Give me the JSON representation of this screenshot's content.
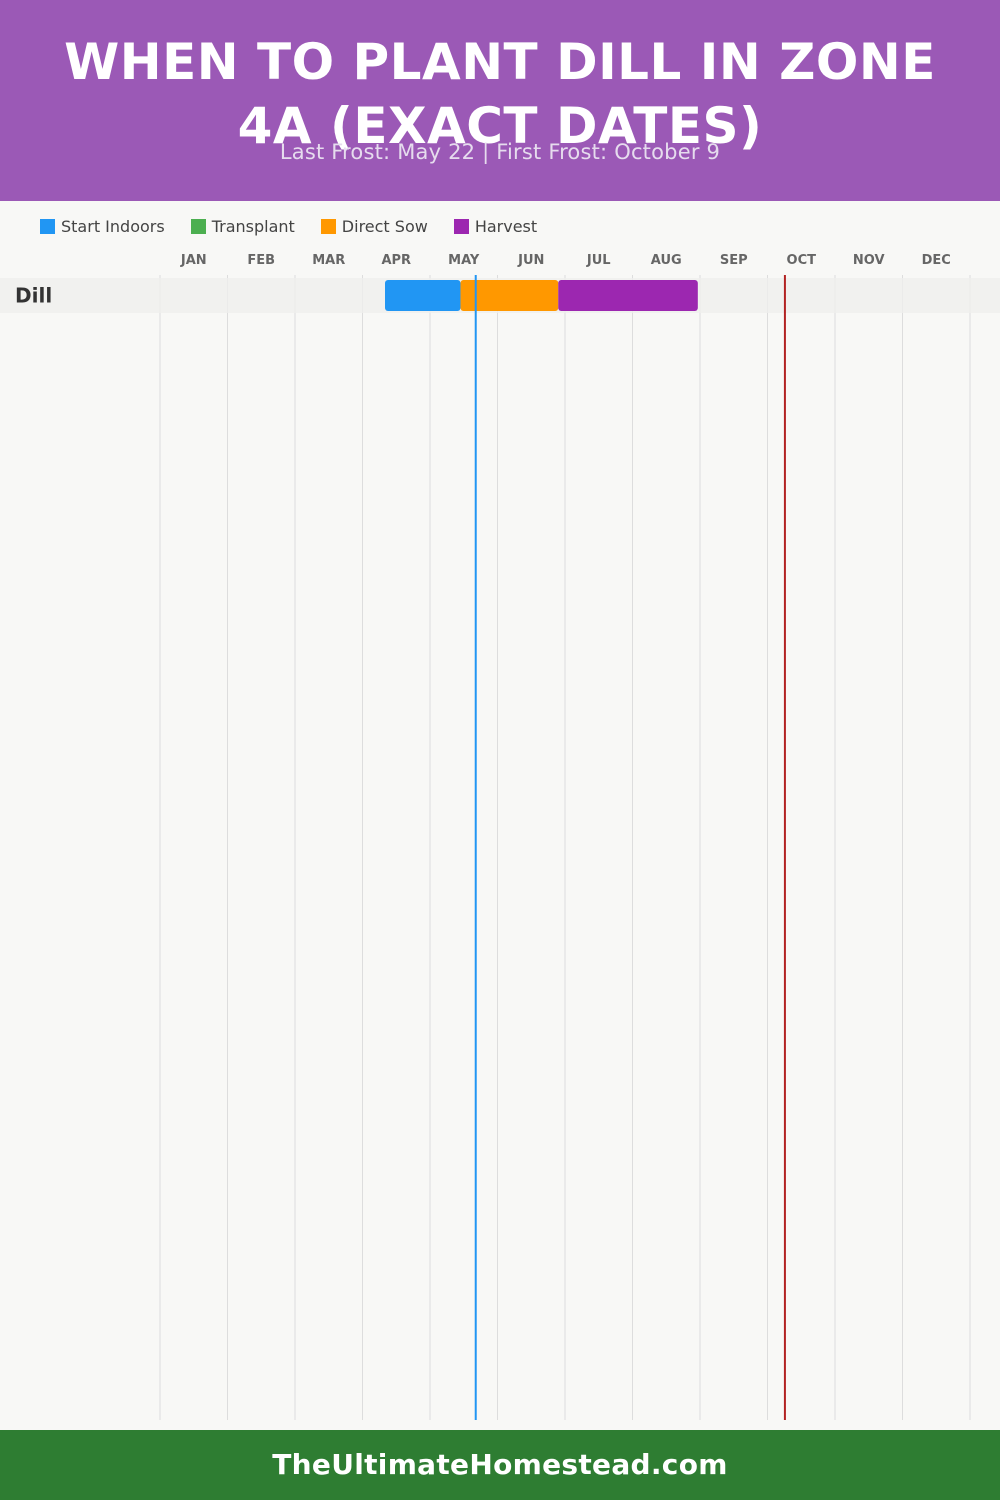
{
  "header": {
    "title": "When to Plant Dill in Zone 4a (Exact Dates)",
    "subtitle": "Last Frost: May 22 | First Frost: October 9",
    "background": "#9b59b6"
  },
  "legend": [
    {
      "label": "Start Indoors",
      "color": "#2196f3"
    },
    {
      "label": "Transplant",
      "color": "#4caf50"
    },
    {
      "label": "Direct Sow",
      "color": "#ff9800"
    },
    {
      "label": "Harvest",
      "color": "#9c27b0"
    }
  ],
  "chart_data": {
    "type": "gantt",
    "months": [
      "JAN",
      "FEB",
      "MAR",
      "APR",
      "MAY",
      "JUN",
      "JUL",
      "AUG",
      "SEP",
      "OCT",
      "NOV",
      "DEC"
    ],
    "rows": [
      {
        "crop": "Dill",
        "segments": [
          {
            "phase": "Start Indoors",
            "start": "Apr 11",
            "end": "May 15",
            "color": "#2196f3"
          },
          {
            "phase": "Direct Sow",
            "start": "May 15",
            "end": "Jun 28",
            "color": "#ff9800"
          },
          {
            "phase": "Harvest",
            "start": "Jun 28",
            "end": "Aug 31",
            "color": "#9c27b0"
          }
        ]
      }
    ],
    "markers": [
      {
        "name": "Last Frost",
        "date": "May 22",
        "color": "#2196f3"
      },
      {
        "name": "First Frost",
        "date": "Oct 9",
        "color": "#b22222"
      }
    ],
    "grid": true,
    "legend_position": "top-left"
  },
  "footer": {
    "text": "TheUltimateHomestead.com",
    "background": "#2e7d32"
  }
}
